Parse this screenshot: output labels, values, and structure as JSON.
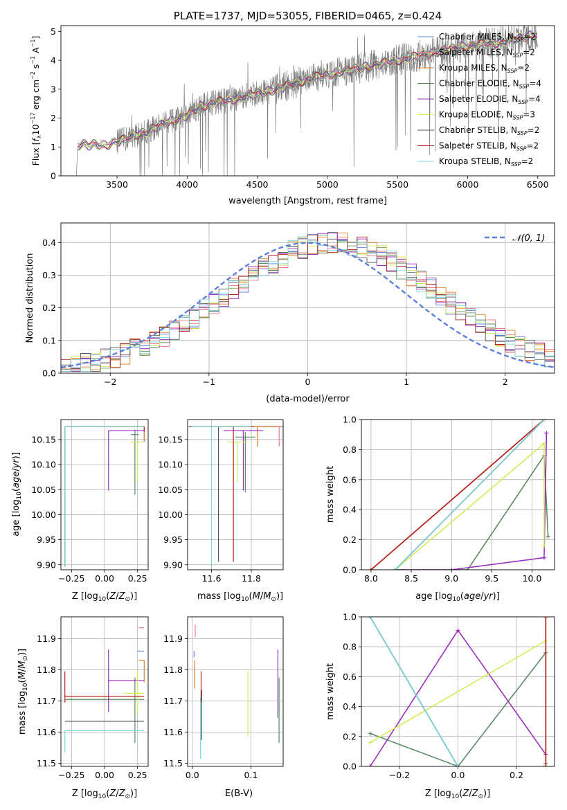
{
  "colors": {
    "chabrier_miles": "#5b7fdc",
    "salpeter_miles": "#f07a85",
    "kroupa_miles": "#e07f2a",
    "chabrier_elodie": "#5a8a65",
    "salpeter_elodie": "#9a2fbf",
    "kroupa_elodie": "#d4ec58",
    "chabrier_stelib": "#555555",
    "salpeter_stelib": "#b22222",
    "kroupa_stelib": "#7fd7d7",
    "gaussian": "#5b7fdc",
    "data": "#808080"
  },
  "chart_data": [
    {
      "id": "spectrum",
      "type": "line",
      "title": "PLATE=1737, MJD=53055, FIBERID=0465, z=0.424",
      "xlabel": "wavelength [Angstrom, rest frame]",
      "ylabel": "Flux [f_λ 10^-17 erg cm^-2 s^-1 A^-1]",
      "xlim": [
        3100,
        6620
      ],
      "ylim": [
        0,
        5.2
      ],
      "xticks": [
        3500,
        4000,
        4500,
        5000,
        5500,
        6000,
        6500
      ],
      "yticks": [
        0,
        1,
        2,
        3,
        4,
        5
      ],
      "legend_position": "top-right",
      "series": [
        {
          "name": "Chabrier MILES, N_SSP=2",
          "color_key": "chabrier_miles"
        },
        {
          "name": "Salpeter MILES, N_SSP=2",
          "color_key": "salpeter_miles"
        },
        {
          "name": "Kroupa MILES, N_SSP=2",
          "color_key": "kroupa_miles"
        },
        {
          "name": "Chabrier ELODIE, N_SSP=4",
          "color_key": "chabrier_elodie"
        },
        {
          "name": "Salpeter ELODIE, N_SSP=4",
          "color_key": "salpeter_elodie"
        },
        {
          "name": "Kroupa ELODIE, N_SSP=3",
          "color_key": "kroupa_elodie"
        },
        {
          "name": "Chabrier STELIB, N_SSP=2",
          "color_key": "chabrier_stelib"
        },
        {
          "name": "Salpeter STELIB, N_SSP=2",
          "color_key": "salpeter_stelib"
        },
        {
          "name": "Kroupa STELIB, N_SSP=2",
          "color_key": "kroupa_stelib"
        }
      ],
      "continuum_points": [
        [
          3210,
          0
        ],
        [
          3220,
          1.05
        ],
        [
          3260,
          1.1
        ],
        [
          3300,
          1.05
        ],
        [
          3350,
          1.1
        ],
        [
          3400,
          1.05
        ],
        [
          3450,
          1.1
        ],
        [
          3500,
          1.2
        ],
        [
          3550,
          1.25
        ],
        [
          3600,
          1.35
        ],
        [
          3650,
          1.45
        ],
        [
          3700,
          1.5
        ],
        [
          3750,
          1.6
        ],
        [
          3800,
          1.75
        ],
        [
          3850,
          1.85
        ],
        [
          3900,
          1.9
        ],
        [
          3950,
          2.0
        ],
        [
          4000,
          2.1
        ],
        [
          4100,
          2.4
        ],
        [
          4200,
          2.55
        ],
        [
          4300,
          2.6
        ],
        [
          4400,
          2.75
        ],
        [
          4500,
          2.85
        ],
        [
          4600,
          2.95
        ],
        [
          4700,
          3.1
        ],
        [
          4800,
          3.25
        ],
        [
          4900,
          3.4
        ],
        [
          5000,
          3.5
        ],
        [
          5100,
          3.6
        ],
        [
          5200,
          3.7
        ],
        [
          5300,
          3.8
        ],
        [
          5400,
          3.9
        ],
        [
          5500,
          4.0
        ],
        [
          5600,
          4.1
        ],
        [
          5700,
          4.2
        ],
        [
          5800,
          4.3
        ],
        [
          5900,
          4.4
        ],
        [
          6000,
          4.5
        ],
        [
          6100,
          4.55
        ],
        [
          6200,
          4.6
        ],
        [
          6300,
          4.7
        ],
        [
          6400,
          4.8
        ],
        [
          6500,
          4.9
        ]
      ]
    },
    {
      "id": "residuals",
      "type": "line",
      "xlabel": "(data-model)/error",
      "ylabel": "Normed distribution",
      "xlim": [
        -2.5,
        2.5
      ],
      "ylim": [
        0,
        0.46
      ],
      "xticks": [
        -2,
        -1,
        0,
        1,
        2
      ],
      "yticks": [
        0.0,
        0.1,
        0.2,
        0.3,
        0.4
      ],
      "legend": "𝒩(0, 1)",
      "legend_position": "top-right",
      "grid": true
    },
    {
      "id": "age_vs_z",
      "type": "scatter",
      "xlabel": "Z [log10(Z/Z⊙)]",
      "ylabel": "age [log10(age/yr)]",
      "xlim": [
        -0.33,
        0.33
      ],
      "ylim": [
        9.89,
        10.19
      ],
      "xticks": [
        -0.25,
        0.0,
        0.25
      ],
      "yticks": [
        9.9,
        9.95,
        10.0,
        10.05,
        10.1,
        10.15
      ],
      "grid": true,
      "points": [
        {
          "k": "chabrier_miles",
          "x": -0.3,
          "y": 10.176,
          "xe": [
            0,
            0.6
          ],
          "ye": [
            0.28,
            0
          ]
        },
        {
          "k": "salpeter_miles",
          "x": 0.3,
          "y": 10.176,
          "xe": [
            0.6,
            0
          ],
          "ye": [
            0.03,
            0
          ]
        },
        {
          "k": "kroupa_miles",
          "x": 0.3,
          "y": 10.176,
          "xe": [
            0.6,
            0
          ],
          "ye": [
            0.03,
            0
          ]
        },
        {
          "k": "chabrier_elodie",
          "x": 0.23,
          "y": 10.16,
          "xe": [
            0.03,
            0.03
          ],
          "ye": [
            0.12,
            0.01
          ]
        },
        {
          "k": "salpeter_elodie",
          "x": 0.03,
          "y": 10.168,
          "xe": [
            0,
            0.27
          ],
          "ye": [
            0.12,
            0
          ]
        },
        {
          "k": "kroupa_elodie",
          "x": 0.25,
          "y": 10.145,
          "xe": [
            0.05,
            0.05
          ],
          "ye": [
            0.08,
            0
          ]
        },
        {
          "k": "chabrier_stelib",
          "x": -0.3,
          "y": 10.176,
          "xe": [
            0,
            0.6
          ],
          "ye": [
            0.28,
            0
          ]
        },
        {
          "k": "salpeter_stelib",
          "x": 0.3,
          "y": 10.176,
          "xe": [
            0.6,
            0
          ],
          "ye": [
            0.01,
            0
          ]
        },
        {
          "k": "kroupa_stelib",
          "x": -0.3,
          "y": 10.176,
          "xe": [
            0,
            0.6
          ],
          "ye": [
            0.28,
            0
          ]
        }
      ]
    },
    {
      "id": "age_vs_mass",
      "type": "scatter",
      "xlabel": "mass [log10(M/M⊙)]",
      "xlim": [
        11.48,
        11.96
      ],
      "ylim": [
        9.89,
        10.19
      ],
      "xticks": [
        11.6,
        11.8
      ],
      "yticks": [
        9.9,
        9.95,
        10.0,
        10.05,
        10.1,
        10.15
      ],
      "grid": true,
      "points": [
        {
          "k": "chabrier_miles",
          "x": 11.86,
          "y": 10.176,
          "xe": [
            0.1,
            0.1
          ],
          "ye": [
            0,
            0
          ]
        },
        {
          "k": "salpeter_miles",
          "x": 11.94,
          "y": 10.176,
          "xe": [
            0.15,
            0.03
          ],
          "ye": [
            0.04,
            0
          ]
        },
        {
          "k": "kroupa_miles",
          "x": 11.83,
          "y": 10.176,
          "xe": [
            0.1,
            0.1
          ],
          "ye": [
            0.04,
            0
          ]
        },
        {
          "k": "chabrier_elodie",
          "x": 11.77,
          "y": 10.155,
          "xe": [
            0.05,
            0.05
          ],
          "ye": [
            0.11,
            0.01
          ]
        },
        {
          "k": "salpeter_elodie",
          "x": 11.76,
          "y": 10.168,
          "xe": [
            0.1,
            0.1
          ],
          "ye": [
            0.12,
            0
          ]
        },
        {
          "k": "kroupa_elodie",
          "x": 11.73,
          "y": 10.145,
          "xe": [
            0.05,
            0.05
          ],
          "ye": [
            0.08,
            0
          ]
        },
        {
          "k": "chabrier_stelib",
          "x": 11.635,
          "y": 10.176,
          "xe": [
            0.15,
            0.1
          ],
          "ye": [
            0.27,
            0
          ]
        },
        {
          "k": "salpeter_stelib",
          "x": 11.71,
          "y": 10.176,
          "xe": [
            0.15,
            0.1
          ],
          "ye": [
            0.27,
            0
          ]
        },
        {
          "k": "kroupa_stelib",
          "x": 11.6,
          "y": 10.176,
          "xe": [
            0.1,
            0.2
          ],
          "ye": [
            0.28,
            0
          ]
        }
      ]
    },
    {
      "id": "massweight_vs_age",
      "type": "line",
      "xlabel": "age [log10(age/yr)]",
      "ylabel": "mass weight",
      "xlim": [
        7.88,
        10.28
      ],
      "ylim": [
        0.0,
        1.0
      ],
      "xticks": [
        8.0,
        8.5,
        9.0,
        9.5,
        10.0
      ],
      "yticks": [
        0.0,
        0.2,
        0.4,
        0.6,
        0.8,
        1.0
      ],
      "grid": true,
      "series": [
        {
          "k": "chabrier_miles",
          "x": [
            8.3,
            10.15
          ],
          "y": [
            0.0,
            1.0
          ]
        },
        {
          "k": "salpeter_miles",
          "x": [
            8.0,
            10.15
          ],
          "y": [
            0.0,
            1.0
          ]
        },
        {
          "k": "kroupa_miles",
          "x": [
            8.0,
            10.15
          ],
          "y": [
            0.0,
            1.0
          ]
        },
        {
          "k": "chabrier_elodie",
          "x": [
            8.3,
            9.2,
            10.15,
            10.2
          ],
          "y": [
            0.0,
            0.0,
            0.76,
            0.22
          ]
        },
        {
          "k": "salpeter_elodie",
          "x": [
            8.3,
            9.0,
            10.15,
            10.18
          ],
          "y": [
            0.0,
            0.0,
            0.08,
            0.91
          ]
        },
        {
          "k": "kroupa_elodie",
          "x": [
            8.3,
            10.15,
            10.15
          ],
          "y": [
            0.0,
            0.84,
            0.16
          ]
        },
        {
          "k": "chabrier_stelib",
          "x": [
            8.3,
            10.15
          ],
          "y": [
            0.0,
            1.0
          ]
        },
        {
          "k": "salpeter_stelib",
          "x": [
            8.0,
            10.15
          ],
          "y": [
            0.0,
            1.0
          ]
        },
        {
          "k": "kroupa_stelib",
          "x": [
            8.3,
            10.15
          ],
          "y": [
            0.0,
            1.0
          ]
        }
      ]
    },
    {
      "id": "mass_vs_z",
      "type": "scatter",
      "xlabel": "Z [log10(Z/Z⊙)]",
      "ylabel": "mass [log10(M/M⊙)]",
      "xlim": [
        -0.33,
        0.33
      ],
      "ylim": [
        11.49,
        11.97
      ],
      "xticks": [
        -0.25,
        0.0,
        0.25
      ],
      "yticks": [
        11.5,
        11.6,
        11.7,
        11.8,
        11.9
      ],
      "grid": true,
      "points": [
        {
          "k": "chabrier_miles",
          "x": 0.3,
          "y": 11.86,
          "xe": [
            0.05,
            0
          ],
          "ye": [
            0,
            0
          ]
        },
        {
          "k": "salpeter_miles",
          "x": 0.3,
          "y": 11.935,
          "xe": [
            0.04,
            0
          ],
          "ye": [
            0,
            0
          ]
        },
        {
          "k": "kroupa_miles",
          "x": 0.3,
          "y": 11.83,
          "xe": [
            0.04,
            0
          ],
          "ye": [
            0.07,
            0
          ]
        },
        {
          "k": "chabrier_elodie",
          "x": 0.23,
          "y": 11.705,
          "xe": [
            0.53,
            0.07
          ],
          "ye": [
            0.14,
            0.07
          ]
        },
        {
          "k": "salpeter_elodie",
          "x": 0.03,
          "y": 11.765,
          "xe": [
            0,
            0.27
          ],
          "ye": [
            0.1,
            0.1
          ]
        },
        {
          "k": "kroupa_elodie",
          "x": 0.25,
          "y": 11.725,
          "xe": [
            0.1,
            0.05
          ],
          "ye": [
            0.07,
            0.07
          ]
        },
        {
          "k": "chabrier_stelib",
          "x": -0.3,
          "y": 11.635,
          "xe": [
            0,
            0.6
          ],
          "ye": [
            0,
            0
          ]
        },
        {
          "k": "salpeter_stelib",
          "x": -0.3,
          "y": 11.715,
          "xe": [
            0,
            0.6
          ],
          "ye": [
            0.02,
            0.08
          ]
        },
        {
          "k": "kroupa_stelib",
          "x": -0.3,
          "y": 11.605,
          "xe": [
            0,
            0.6
          ],
          "ye": [
            0.07,
            0
          ]
        }
      ]
    },
    {
      "id": "mass_vs_ebv",
      "type": "scatter",
      "xlabel": "E(B-V)",
      "xlim": [
        -0.008,
        0.155
      ],
      "ylim": [
        11.49,
        11.97
      ],
      "xticks": [
        0.0,
        0.1
      ],
      "yticks": [
        11.5,
        11.6,
        11.7,
        11.8,
        11.9
      ],
      "grid": true,
      "points": [
        {
          "k": "chabrier_miles",
          "x": 0.003,
          "y": 11.86,
          "xe": [
            0,
            0
          ],
          "ye": [
            0.02,
            0
          ]
        },
        {
          "k": "salpeter_miles",
          "x": 0.005,
          "y": 11.935,
          "xe": [
            0,
            0
          ],
          "ye": [
            0.03,
            0.01
          ]
        },
        {
          "k": "kroupa_miles",
          "x": 0.004,
          "y": 11.83,
          "xe": [
            0,
            0
          ],
          "ye": [
            0.09,
            0
          ]
        },
        {
          "k": "chabrier_elodie",
          "x": 0.148,
          "y": 11.705,
          "xe": [
            0,
            0
          ],
          "ye": [
            0.14,
            0.07
          ]
        },
        {
          "k": "salpeter_elodie",
          "x": 0.146,
          "y": 11.765,
          "xe": [
            0,
            0
          ],
          "ye": [
            0.12,
            0.1
          ]
        },
        {
          "k": "kroupa_elodie",
          "x": 0.095,
          "y": 11.725,
          "xe": [
            0,
            0
          ],
          "ye": [
            0.14,
            0.07
          ]
        },
        {
          "k": "chabrier_stelib",
          "x": 0.016,
          "y": 11.635,
          "xe": [
            0,
            0
          ],
          "ye": [
            0.06,
            0.1
          ]
        },
        {
          "k": "salpeter_stelib",
          "x": 0.015,
          "y": 11.715,
          "xe": [
            0,
            0
          ],
          "ye": [
            0.02,
            0.08
          ]
        },
        {
          "k": "kroupa_stelib",
          "x": 0.014,
          "y": 11.605,
          "xe": [
            0,
            0
          ],
          "ye": [
            0.09,
            0.11
          ]
        }
      ]
    },
    {
      "id": "massweight_vs_z",
      "type": "line",
      "xlabel": "Z [log10(Z/Z⊙)]",
      "ylabel": "mass weight",
      "xlim": [
        -0.33,
        0.33
      ],
      "ylim": [
        0.0,
        1.0
      ],
      "xticks": [
        -0.2,
        0.0,
        0.2
      ],
      "yticks": [
        0.0,
        0.2,
        0.4,
        0.6,
        0.8,
        1.0
      ],
      "grid": true,
      "series": [
        {
          "k": "chabrier_miles",
          "x": [
            -0.3,
            0.0
          ],
          "y": [
            1.0,
            0.0
          ]
        },
        {
          "k": "salpeter_miles",
          "x": [
            0.3,
            0.3
          ],
          "y": [
            0.0,
            1.0
          ]
        },
        {
          "k": "kroupa_miles",
          "x": [
            0.3,
            0.3
          ],
          "y": [
            0.0,
            1.0
          ]
        },
        {
          "k": "chabrier_elodie",
          "x": [
            -0.3,
            0.0,
            0.3,
            0.3
          ],
          "y": [
            0.22,
            0.0,
            0.76,
            0.02
          ]
        },
        {
          "k": "salpeter_elodie",
          "x": [
            -0.3,
            0.0,
            0.3
          ],
          "y": [
            0.0,
            0.91,
            0.08
          ]
        },
        {
          "k": "kroupa_elodie",
          "x": [
            -0.3,
            0.3,
            0.3
          ],
          "y": [
            0.16,
            0.84,
            0.0
          ]
        },
        {
          "k": "chabrier_stelib",
          "x": [
            -0.3,
            0.0
          ],
          "y": [
            1.0,
            0.0
          ]
        },
        {
          "k": "salpeter_stelib",
          "x": [
            0.3,
            0.3
          ],
          "y": [
            0.0,
            1.0
          ]
        },
        {
          "k": "kroupa_stelib",
          "x": [
            -0.3,
            0.0
          ],
          "y": [
            1.0,
            0.0
          ]
        }
      ]
    }
  ]
}
